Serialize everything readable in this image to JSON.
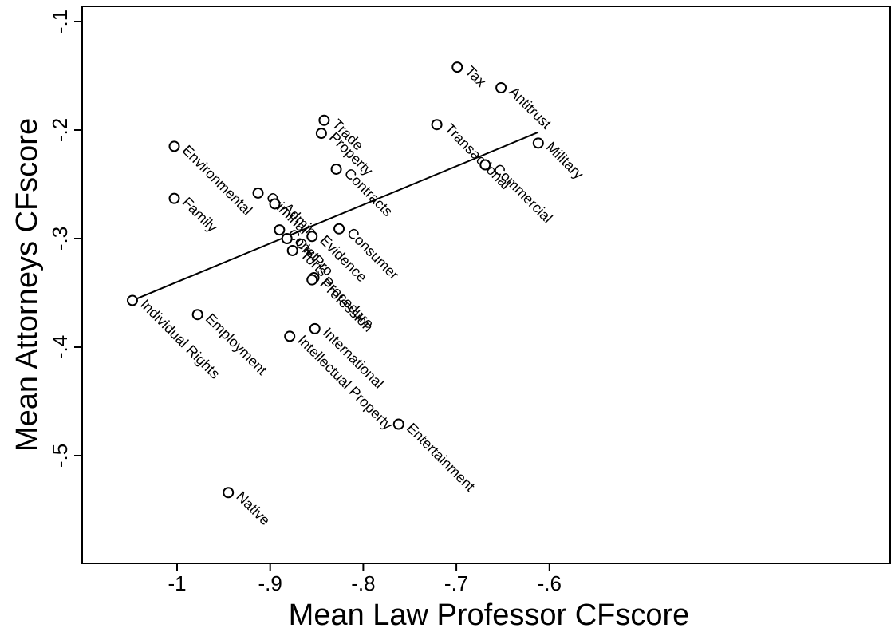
{
  "chart_data": {
    "type": "scatter",
    "title": "",
    "xlabel": "Mean Law Professor CFscore",
    "ylabel": "Mean Attorneys CFscore",
    "xlim": [
      -1.06,
      -0.55
    ],
    "ylim": [
      -0.6,
      -0.1
    ],
    "x_ticks": [
      -1.0,
      -0.9,
      -0.8,
      -0.7,
      -0.6
    ],
    "x_tick_labels": [
      "-1",
      "-.9",
      "-.8",
      "-.7",
      "-.6"
    ],
    "y_ticks": [
      -0.5,
      -0.4,
      -0.3,
      -0.2,
      -0.1
    ],
    "y_tick_labels": [
      "-.5",
      "-.4",
      "-.3",
      "-.2",
      "-.1"
    ],
    "grid": false,
    "legend": "none",
    "fit_line": {
      "x": [
        -1.048,
        -0.612
      ],
      "y": [
        -0.357,
        -0.202
      ]
    },
    "points": [
      {
        "label": "Tax",
        "x": -0.699,
        "y": -0.142
      },
      {
        "label": "Antitrust",
        "x": -0.652,
        "y": -0.161
      },
      {
        "label": "Military",
        "x": -0.612,
        "y": -0.212
      },
      {
        "label": "Transactional",
        "x": -0.721,
        "y": -0.195
      },
      {
        "label": "Commercial",
        "x": -0.669,
        "y": -0.232
      },
      {
        "label": "Trade",
        "x": -0.842,
        "y": -0.191
      },
      {
        "label": "Property",
        "x": -0.845,
        "y": -0.203
      },
      {
        "label": "Contracts",
        "x": -0.829,
        "y": -0.236
      },
      {
        "label": "Consumer",
        "x": -0.826,
        "y": -0.291
      },
      {
        "label": "Environmental",
        "x": -1.003,
        "y": -0.215
      },
      {
        "label": "Family",
        "x": -1.003,
        "y": -0.263
      },
      {
        "label": "Criminal",
        "x": -0.913,
        "y": -0.258
      },
      {
        "label": "Admin",
        "x": -0.895,
        "y": -0.268
      },
      {
        "label": "Const",
        "x": -0.89,
        "y": -0.292
      },
      {
        "label": "Civ Pro",
        "x": -0.882,
        "y": -0.3
      },
      {
        "label": "Torts",
        "x": -0.876,
        "y": -0.311
      },
      {
        "label": "Evidence",
        "x": -0.855,
        "y": -0.298
      },
      {
        "label": "Procedure",
        "x": -0.853,
        "y": -0.336
      },
      {
        "label": "Profession",
        "x": -0.855,
        "y": -0.338
      },
      {
        "label": "International",
        "x": -0.852,
        "y": -0.383
      },
      {
        "label": "Individual Rights",
        "x": -1.048,
        "y": -0.357
      },
      {
        "label": "Employment",
        "x": -0.978,
        "y": -0.37
      },
      {
        "label": "Intellectual Property",
        "x": -0.879,
        "y": -0.39
      },
      {
        "label": "Entertainment",
        "x": -0.762,
        "y": -0.471
      },
      {
        "label": "Native",
        "x": -0.945,
        "y": -0.534
      }
    ]
  }
}
